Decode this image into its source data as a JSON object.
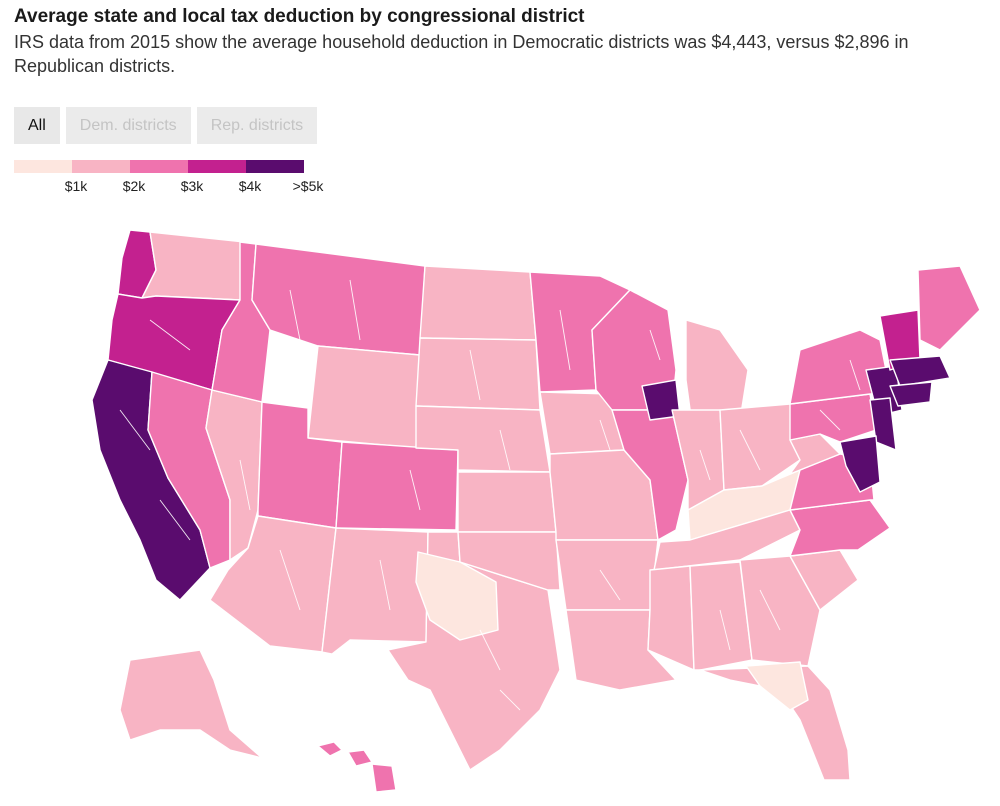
{
  "header": {
    "title": "Average state and local tax deduction by congressional district",
    "subtitle": "IRS data from 2015 show the average household deduction in Democratic districts was $4,443, versus $2,896 in Republican districts."
  },
  "filters": [
    {
      "label": "All",
      "active": true
    },
    {
      "label": "Dem. districts",
      "active": false
    },
    {
      "label": "Rep. districts",
      "active": false
    }
  ],
  "legend": {
    "bins": [
      {
        "label": "",
        "color": "#fde6df"
      },
      {
        "label": "$1k",
        "color": "#f8b4c4"
      },
      {
        "label": "$2k",
        "color": "#ef73ae"
      },
      {
        "label": "$3k",
        "color": "#c3218f"
      },
      {
        "label": "$4k",
        "color": "#5a0c6e"
      }
    ],
    "tick_labels": [
      "$1k",
      "$2k",
      "$3k",
      "$4k",
      ">$5k"
    ]
  },
  "map": {
    "colors": {
      "bin1": "#fde6df",
      "bin2": "#f8b4c4",
      "bin3": "#ef73ae",
      "bin4": "#c3218f",
      "bin5": "#5a0c6e",
      "border": "#ffffff"
    },
    "regions": [
      {
        "name": "washington-west",
        "bin": 4
      },
      {
        "name": "washington-east",
        "bin": 2
      },
      {
        "name": "oregon",
        "bin": 4
      },
      {
        "name": "california-coast",
        "bin": 5
      },
      {
        "name": "california-inland",
        "bin": 3
      },
      {
        "name": "nevada",
        "bin": 2
      },
      {
        "name": "idaho",
        "bin": 3
      },
      {
        "name": "montana",
        "bin": 3
      },
      {
        "name": "wyoming",
        "bin": 2
      },
      {
        "name": "utah",
        "bin": 3
      },
      {
        "name": "colorado",
        "bin": 3
      },
      {
        "name": "arizona",
        "bin": 2
      },
      {
        "name": "new-mexico",
        "bin": 2
      },
      {
        "name": "texas",
        "bin": 2
      },
      {
        "name": "west-texas",
        "bin": 1
      },
      {
        "name": "north-dakota",
        "bin": 2
      },
      {
        "name": "south-dakota",
        "bin": 2
      },
      {
        "name": "nebraska",
        "bin": 2
      },
      {
        "name": "kansas",
        "bin": 2
      },
      {
        "name": "oklahoma",
        "bin": 2
      },
      {
        "name": "minnesota",
        "bin": 3
      },
      {
        "name": "iowa",
        "bin": 2
      },
      {
        "name": "missouri",
        "bin": 2
      },
      {
        "name": "arkansas",
        "bin": 2
      },
      {
        "name": "louisiana",
        "bin": 2
      },
      {
        "name": "wisconsin",
        "bin": 3
      },
      {
        "name": "illinois",
        "bin": 3
      },
      {
        "name": "chicago-area",
        "bin": 5
      },
      {
        "name": "michigan",
        "bin": 2
      },
      {
        "name": "indiana",
        "bin": 2
      },
      {
        "name": "ohio",
        "bin": 2
      },
      {
        "name": "kentucky",
        "bin": 1
      },
      {
        "name": "tennessee",
        "bin": 2
      },
      {
        "name": "mississippi",
        "bin": 2
      },
      {
        "name": "alabama",
        "bin": 2
      },
      {
        "name": "georgia",
        "bin": 2
      },
      {
        "name": "florida",
        "bin": 2
      },
      {
        "name": "north-florida",
        "bin": 1
      },
      {
        "name": "south-carolina",
        "bin": 2
      },
      {
        "name": "north-carolina",
        "bin": 3
      },
      {
        "name": "virginia",
        "bin": 3
      },
      {
        "name": "west-virginia",
        "bin": 2
      },
      {
        "name": "pennsylvania",
        "bin": 3
      },
      {
        "name": "new-york-upstate",
        "bin": 3
      },
      {
        "name": "new-york-city-area",
        "bin": 5
      },
      {
        "name": "new-jersey",
        "bin": 5
      },
      {
        "name": "maryland-dc",
        "bin": 5
      },
      {
        "name": "vermont-nh",
        "bin": 4
      },
      {
        "name": "massachusetts",
        "bin": 5
      },
      {
        "name": "connecticut",
        "bin": 5
      },
      {
        "name": "maine",
        "bin": 3
      },
      {
        "name": "alaska",
        "bin": 2
      },
      {
        "name": "hawaii",
        "bin": 3
      }
    ]
  }
}
